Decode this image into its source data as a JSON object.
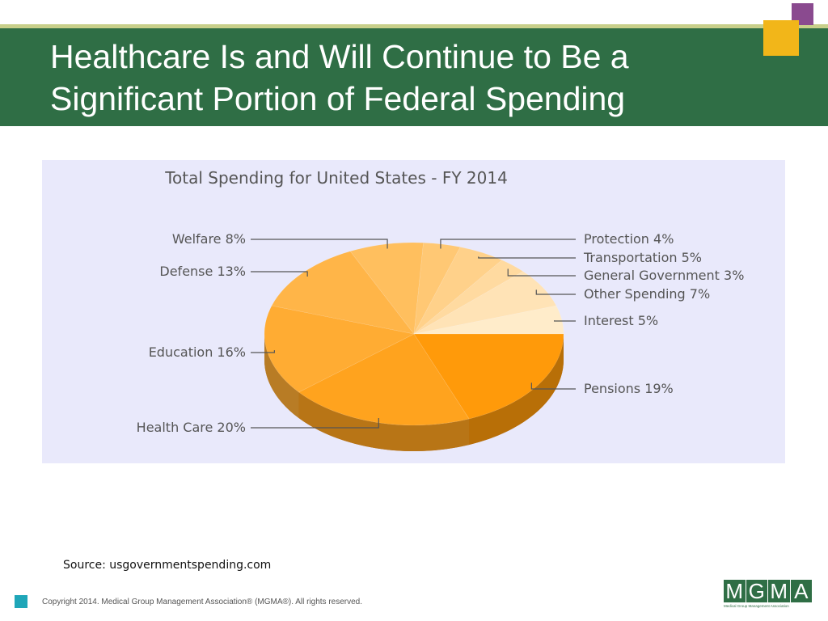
{
  "slide": {
    "title": "Healthcare Is and Will Continue to Be a Significant Portion of Federal Spending",
    "source": "Source: usgovernmentspending.com",
    "copyright": "Copyright 2014. Medical Group Management Association® (MGMA®). All rights reserved.",
    "logo_text": "MGMA",
    "logo_tagline": "Medical Group Management Association"
  },
  "colors": {
    "header_green": "#2f6e45",
    "accent_purple": "#8a4a8f",
    "accent_yellow": "#f2b619",
    "accent_teal": "#1fa6b8",
    "chart_background": "#e9e9fb"
  },
  "chart_data": {
    "type": "pie",
    "title": "Total Spending for United States - FY 2014",
    "legend": "none",
    "slices": [
      {
        "label": "Pensions 19%",
        "value": 19,
        "color": "#ff9a0a"
      },
      {
        "label": "Health Care 20%",
        "value": 20,
        "color": "#ffa31e"
      },
      {
        "label": "Education 16%",
        "value": 16,
        "color": "#ffac33"
      },
      {
        "label": "Defense 13%",
        "value": 13,
        "color": "#ffb548"
      },
      {
        "label": "Welfare 8%",
        "value": 8,
        "color": "#ffbf5e"
      },
      {
        "label": "Protection 4%",
        "value": 4,
        "color": "#ffc874"
      },
      {
        "label": "Transportation 5%",
        "value": 5,
        "color": "#ffd18a"
      },
      {
        "label": "General Government 3%",
        "value": 3,
        "color": "#ffdaa0"
      },
      {
        "label": "Other Spending 7%",
        "value": 7,
        "color": "#ffe3b6"
      },
      {
        "label": "Interest 5%",
        "value": 5,
        "color": "#ffecca"
      }
    ]
  }
}
